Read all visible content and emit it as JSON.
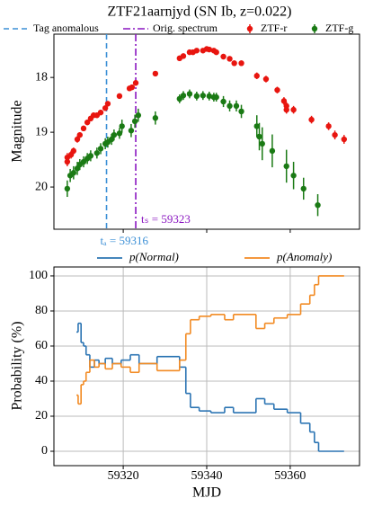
{
  "chart_data": [
    {
      "type": "scatter",
      "title": "ZTF21aarnjyd (SN Ib, z=0.022)",
      "ylabel": "Magnitude",
      "xlim": [
        59303.4,
        59376.6
      ],
      "ylim": [
        20.77,
        17.21
      ],
      "xticks": [
        59320,
        59340,
        59360
      ],
      "yticks": [
        18,
        19,
        20
      ],
      "legend_position": "top",
      "vlines": [
        {
          "name": "Tag anomalous",
          "x": 59316,
          "color": "#3b8fd6",
          "style": "dashed",
          "label": "tₐ = 59316"
        },
        {
          "name": "Orig. spectrum",
          "x": 59323,
          "color": "#8a16c0",
          "style": "dashdot",
          "label": "tₛ = 59323"
        }
      ],
      "series": [
        {
          "name": "ZTF-r",
          "color": "#e8150f",
          "x": [
            59306.6,
            59306.6,
            59307.5,
            59308.1,
            59309.0,
            59309.6,
            59310.5,
            59311.4,
            59312.2,
            59312.9,
            59313.7,
            59314.6,
            59315.7,
            59316.3,
            59319.1,
            59321.5,
            59322.1,
            59323.0,
            59327.7,
            59333.5,
            59334.4,
            59335.9,
            59336.7,
            59337.6,
            59339.1,
            59340.0,
            59340.6,
            59341.7,
            59342.3,
            59344.0,
            59345.5,
            59346.6,
            59348.3,
            59352.0,
            59354.2,
            59356.9,
            59358.5,
            59359.1,
            59359.1,
            59360.8,
            59365.1,
            59369.2,
            59370.7,
            59372.9
          ],
          "values": [
            19.46,
            19.54,
            19.41,
            19.34,
            19.13,
            19.05,
            18.93,
            18.82,
            18.75,
            18.69,
            18.69,
            18.64,
            18.56,
            18.48,
            18.34,
            18.2,
            18.18,
            18.1,
            17.93,
            17.65,
            17.61,
            17.54,
            17.54,
            17.51,
            17.51,
            17.48,
            17.49,
            17.51,
            17.54,
            17.62,
            17.66,
            17.74,
            17.74,
            17.97,
            18.03,
            18.23,
            18.43,
            18.52,
            18.59,
            18.59,
            18.77,
            18.89,
            19.05,
            19.13
          ],
          "errors": [
            0.08,
            0.08,
            0.07,
            0.06,
            0.06,
            0.05,
            0.05,
            0.05,
            0.05,
            0.05,
            0.05,
            0.05,
            0.05,
            0.05,
            0.04,
            0.04,
            0.04,
            0.04,
            0.04,
            0.05,
            0.04,
            0.04,
            0.04,
            0.04,
            0.04,
            0.04,
            0.04,
            0.04,
            0.04,
            0.05,
            0.05,
            0.05,
            0.05,
            0.06,
            0.06,
            0.06,
            0.07,
            0.07,
            0.07,
            0.07,
            0.07,
            0.07,
            0.08,
            0.08
          ]
        },
        {
          "name": "ZTF-g",
          "color": "#1a7a14",
          "x": [
            59306.6,
            59307.3,
            59308.1,
            59309.0,
            59309.6,
            59310.5,
            59311.4,
            59312.2,
            59313.7,
            59314.6,
            59315.7,
            59316.3,
            59317.2,
            59317.8,
            59319.1,
            59319.7,
            59321.9,
            59322.8,
            59323.6,
            59327.7,
            59333.5,
            59334.4,
            59335.9,
            59337.6,
            59339.1,
            59340.6,
            59341.7,
            59342.3,
            59344.0,
            59345.5,
            59347.1,
            59348.3,
            59352.0,
            59352.6,
            59353.3,
            59355.7,
            59359.1,
            59360.8,
            59363.2,
            59366.6
          ],
          "values": [
            20.03,
            19.79,
            19.74,
            19.66,
            19.59,
            19.54,
            19.48,
            19.43,
            19.38,
            19.3,
            19.21,
            19.18,
            19.13,
            19.05,
            19.02,
            18.89,
            18.97,
            18.8,
            18.69,
            18.74,
            18.39,
            18.33,
            18.3,
            18.34,
            18.33,
            18.34,
            18.36,
            18.36,
            18.44,
            18.52,
            18.52,
            18.62,
            18.89,
            19.08,
            19.21,
            19.34,
            19.62,
            19.79,
            20.03,
            20.33
          ],
          "errors": [
            0.15,
            0.12,
            0.12,
            0.12,
            0.1,
            0.1,
            0.1,
            0.1,
            0.1,
            0.1,
            0.1,
            0.1,
            0.1,
            0.1,
            0.1,
            0.12,
            0.12,
            0.12,
            0.12,
            0.12,
            0.08,
            0.08,
            0.08,
            0.08,
            0.08,
            0.08,
            0.08,
            0.08,
            0.1,
            0.1,
            0.1,
            0.12,
            0.2,
            0.25,
            0.3,
            0.3,
            0.3,
            0.25,
            0.2,
            0.2
          ]
        }
      ]
    },
    {
      "type": "line",
      "step": true,
      "xlabel": "MJD",
      "ylabel": "Probability (%)",
      "xlim": [
        59303.4,
        59376.6
      ],
      "ylim": [
        -8.2,
        105.1
      ],
      "xticks": [
        59320,
        59340,
        59360
      ],
      "yticks": [
        0,
        20,
        40,
        60,
        80,
        100
      ],
      "grid": true,
      "legend_position": "top",
      "series": [
        {
          "name": "p(Normal)",
          "color": "#2b74b3",
          "x": [
            59308.8,
            59309.2,
            59309.9,
            59310.5,
            59311.1,
            59312.0,
            59313.1,
            59314.2,
            59315.7,
            59317.4,
            59319.5,
            59321.7,
            59323.8,
            59328.1,
            59333.5,
            59335.0,
            59336.1,
            59338.2,
            59341.0,
            59344.3,
            59346.4,
            59351.8,
            59353.9,
            59356.1,
            59359.3,
            59362.5,
            59364.7,
            59365.8,
            59366.8,
            59372.9
          ],
          "values": [
            68,
            73,
            62,
            60,
            55,
            48,
            52,
            50,
            53,
            50,
            52,
            55,
            50,
            54,
            48,
            33,
            25,
            23,
            22,
            25,
            22,
            30,
            27,
            24,
            22,
            16,
            11,
            5,
            0,
            0
          ]
        },
        {
          "name": "p(Anomaly)",
          "color": "#f28a22",
          "x": [
            59308.8,
            59309.2,
            59309.9,
            59310.5,
            59311.1,
            59312.0,
            59313.1,
            59314.2,
            59315.7,
            59317.4,
            59319.5,
            59321.7,
            59323.8,
            59328.1,
            59333.5,
            59335.0,
            59336.1,
            59338.2,
            59341.0,
            59344.3,
            59346.4,
            59351.8,
            59353.9,
            59356.1,
            59359.3,
            59362.5,
            59364.7,
            59365.8,
            59366.8,
            59372.9
          ],
          "values": [
            32,
            27,
            38,
            40,
            45,
            52,
            48,
            50,
            47,
            50,
            48,
            45,
            50,
            46,
            52,
            67,
            75,
            77,
            78,
            75,
            78,
            70,
            73,
            76,
            78,
            84,
            89,
            95,
            100,
            100
          ]
        }
      ]
    }
  ]
}
